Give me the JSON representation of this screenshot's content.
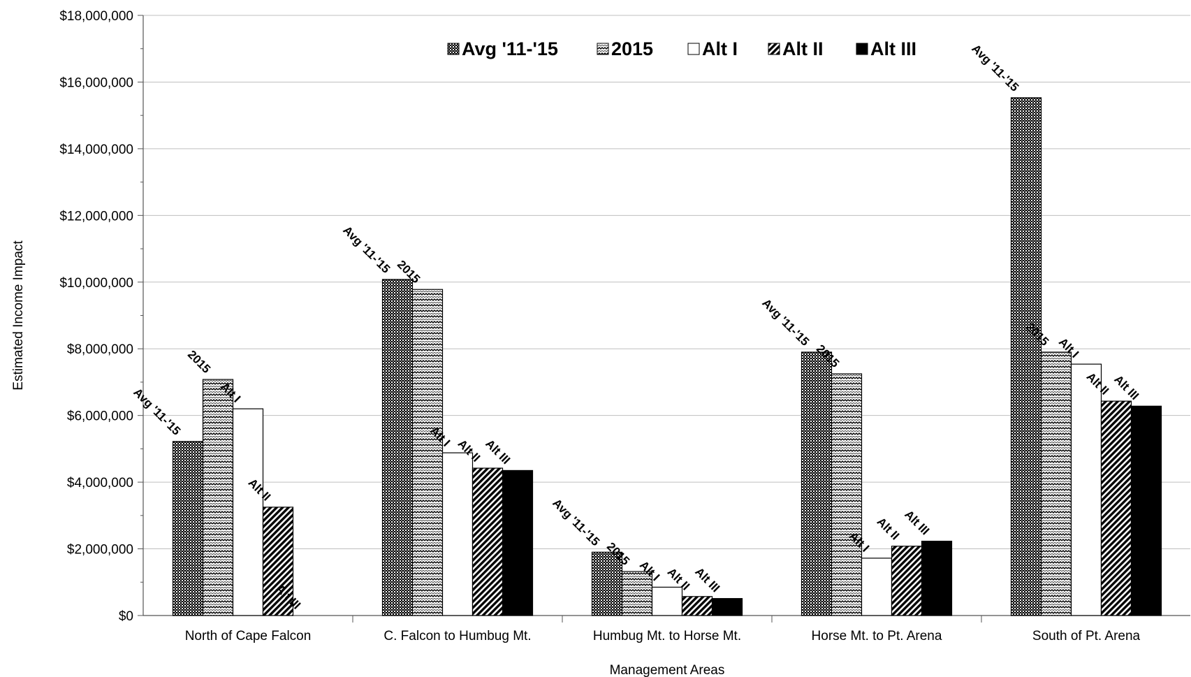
{
  "chart_data": {
    "type": "bar",
    "title": "",
    "xlabel": "Management Areas",
    "ylabel": "Estimated Income Impact",
    "ylim": [
      0,
      18000000
    ],
    "yticks": [
      "$0",
      "$2,000,000",
      "$4,000,000",
      "$6,000,000",
      "$8,000,000",
      "$10,000,000",
      "$12,000,000",
      "$14,000,000",
      "$16,000,000",
      "$18,000,000"
    ],
    "grid": true,
    "legend_position": "top-center",
    "categories": [
      "North of Cape Falcon",
      "C. Falcon to Humbug Mt.",
      "Humbug Mt. to Horse Mt.",
      "Horse Mt. to Pt. Arena",
      "South of Pt. Arena"
    ],
    "series": [
      {
        "name": "Avg '11-'15",
        "pattern": "dense-checker",
        "values": [
          5220000,
          10080000,
          1900000,
          7900000,
          15530000
        ]
      },
      {
        "name": "2015",
        "pattern": "zigzag-dots",
        "values": [
          7080000,
          9780000,
          1320000,
          7250000,
          7900000
        ]
      },
      {
        "name": "Alt I",
        "pattern": "white",
        "values": [
          6200000,
          4880000,
          850000,
          1720000,
          7540000
        ]
      },
      {
        "name": "Alt II",
        "pattern": "diagonal-stripes",
        "values": [
          3250000,
          4420000,
          570000,
          2080000,
          6430000
        ]
      },
      {
        "name": "Alt III",
        "pattern": "solid-black",
        "values": [
          0,
          4350000,
          510000,
          2230000,
          6280000
        ]
      }
    ],
    "bar_labels": [
      "Avg '11-'15",
      "2015",
      "Alt I",
      "Alt II",
      "Alt III"
    ]
  }
}
